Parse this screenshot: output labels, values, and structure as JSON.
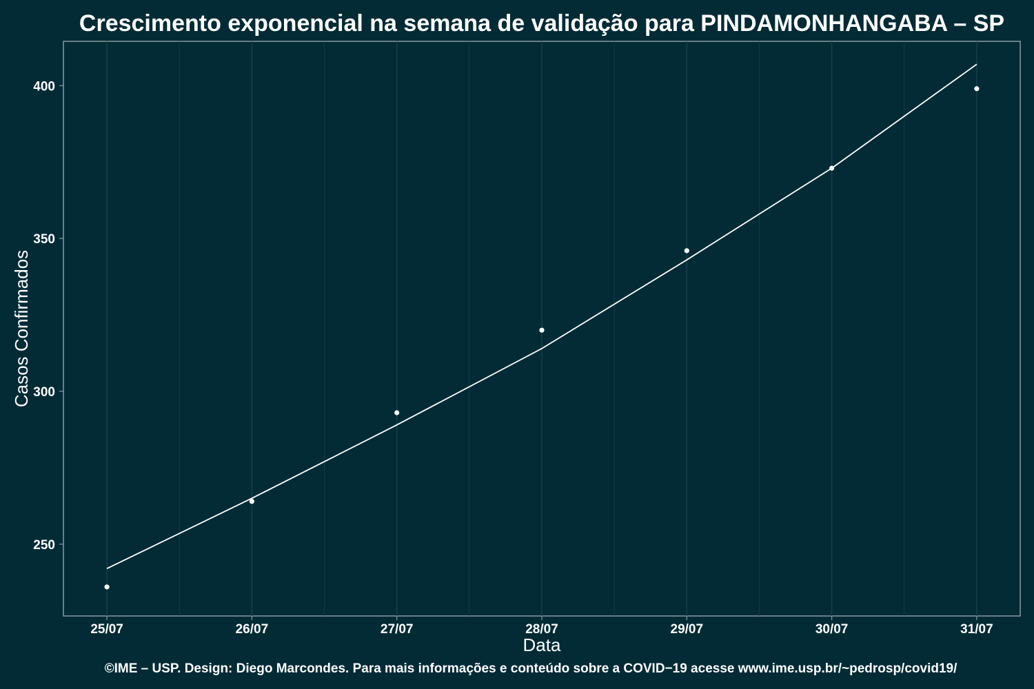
{
  "colors": {
    "background": "#022b36",
    "panel_border": "#8a9ba0",
    "grid": "#14434d",
    "line": "#ffffff",
    "point": "#ffffff",
    "text": "#ffffff"
  },
  "chart_data": {
    "type": "scatter",
    "title": "Crescimento exponencial na semana de validação para PINDAMONHANGABA – SP",
    "xlabel": "Data",
    "ylabel": "Casos Confirmados",
    "caption": "©IME – USP. Design: Diego Marcondes. Para mais informações e conteúdo sobre a COVID−19 acesse www.ime.usp.br/~pedrosp/covid19/",
    "categories": [
      "25/07",
      "26/07",
      "27/07",
      "28/07",
      "29/07",
      "30/07",
      "31/07"
    ],
    "y_ticks": [
      250,
      300,
      350,
      400
    ],
    "ylim": [
      226.5,
      414.5
    ],
    "xlim": [
      -0.3,
      6.3
    ],
    "grid": true,
    "legend": "none",
    "series": [
      {
        "kind": "points",
        "values": [
          236,
          264,
          293,
          320,
          346,
          373,
          399
        ]
      },
      {
        "kind": "fit-line",
        "values": [
          242,
          265,
          289,
          314,
          343,
          373,
          407
        ]
      }
    ]
  }
}
